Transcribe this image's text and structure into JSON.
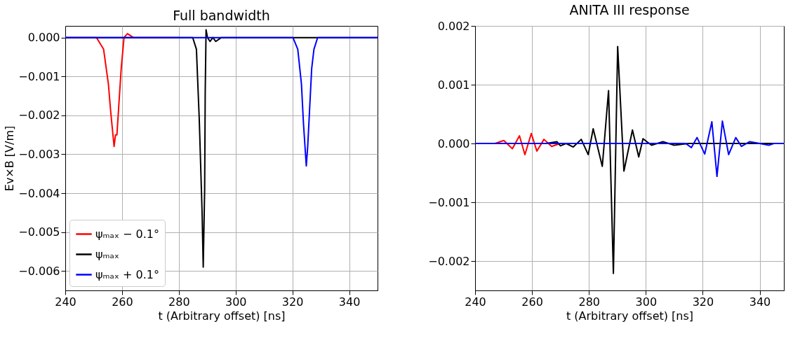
{
  "chart_data": [
    {
      "type": "line",
      "title": "Full bandwidth",
      "xlabel": "t (Arbitrary offset) [ns]",
      "ylabel": "Ev×B [V/m]",
      "xlim": [
        240,
        350
      ],
      "ylim": [
        -0.0065,
        0.0003
      ],
      "xticks": [
        240,
        260,
        280,
        300,
        320,
        340
      ],
      "yticks": [
        {
          "value": 0,
          "label": "0.000"
        },
        {
          "value": -0.001,
          "label": "−0.001"
        },
        {
          "value": -0.002,
          "label": "−0.002"
        },
        {
          "value": -0.003,
          "label": "−0.003"
        },
        {
          "value": -0.004,
          "label": "−0.004"
        },
        {
          "value": -0.005,
          "label": "−0.005"
        },
        {
          "value": -0.006,
          "label": "−0.006"
        }
      ],
      "grid": true,
      "legend": "bottom left",
      "line_style": "solid",
      "marker": "none",
      "series": [
        {
          "name": "ψₘₐₓ − 0.1°",
          "color": "#ff0000",
          "x": [
            240,
            250,
            251,
            253.5,
            255.2,
            256,
            257.2,
            257.7,
            258.2,
            258.9,
            259.7,
            260.7,
            261.9,
            264,
            270,
            280
          ],
          "values": [
            0,
            0,
            0,
            -0.0003,
            -0.0012,
            -0.0019,
            -0.0028,
            -0.0025,
            -0.0025,
            -0.0017,
            -0.0008,
            0,
            0.0001,
            0,
            0,
            0
          ]
        },
        {
          "name": "ψₘₐₓ",
          "color": "#000000",
          "x": [
            240,
            284,
            284.9,
            286.2,
            287.2,
            288.2,
            288.6,
            289.1,
            289.3,
            289.6,
            290.1,
            291,
            292,
            293,
            295,
            300,
            350
          ],
          "values": [
            0,
            0,
            0,
            -0.0003,
            -0.0021,
            -0.0045,
            -0.0059,
            -0.0039,
            -0.0014,
            0.0002,
            0,
            -0.0001,
            0,
            -0.0001,
            0,
            0,
            0
          ]
        },
        {
          "name": "ψₘₐₓ + 0.1°",
          "color": "#0000ff",
          "x": [
            240,
            319.5,
            320.2,
            321.9,
            323.2,
            323.9,
            324.9,
            325.4,
            326.1,
            326.8,
            327.6,
            328.9,
            332,
            350
          ],
          "values": [
            0,
            0,
            0,
            -0.0003,
            -0.0012,
            -0.0022,
            -0.0033,
            -0.0028,
            -0.0018,
            -0.0008,
            -0.0003,
            0,
            0,
            0
          ]
        }
      ]
    },
    {
      "type": "line",
      "title": "ANITA III response",
      "xlabel": "t (Arbitrary offset) [ns]",
      "xlim": [
        240,
        348.5
      ],
      "ylim": [
        -0.0025,
        0.002
      ],
      "xticks": [
        240,
        260,
        280,
        300,
        320,
        340
      ],
      "yticks": [
        {
          "value": 0.002,
          "label": "0.002"
        },
        {
          "value": 0.001,
          "label": "0.001"
        },
        {
          "value": 0,
          "label": "0.000"
        },
        {
          "value": -0.001,
          "label": "−0.001"
        },
        {
          "value": -0.002,
          "label": "−0.002"
        }
      ],
      "grid": true,
      "line_style": "solid",
      "marker": "none",
      "series": [
        {
          "color": "#ff0000",
          "x": [
            240,
            247,
            250.1,
            253.1,
            255.6,
            257.5,
            259.75,
            261.7,
            264.2,
            266.9,
            269.9,
            275
          ],
          "values": [
            0,
            0,
            5e-05,
            -9e-05,
            0.00013,
            -0.00019,
            0.00017,
            -0.00013,
            7e-05,
            -5e-05,
            0,
            0
          ]
        },
        {
          "color": "#000000",
          "x": [
            240,
            258,
            260.5,
            265,
            268.75,
            270,
            272,
            274.5,
            277.3,
            279.75,
            281.5,
            284.7,
            286.9,
            288.6,
            290.1,
            292.3,
            295.3,
            297.5,
            299,
            302,
            306,
            310,
            315,
            320,
            348.5
          ],
          "values": [
            0,
            0,
            0,
            0,
            3e-05,
            -4e-05,
            0,
            -6e-05,
            7e-05,
            -0.00019,
            0.00025,
            -0.00039,
            0.0009,
            -0.00221,
            0.00165,
            -0.00047,
            0.00023,
            -0.00023,
            8e-05,
            -3e-05,
            3e-05,
            -3e-05,
            0,
            0,
            0
          ]
        },
        {
          "color": "#0000ff",
          "x": [
            240,
            310,
            314,
            316,
            318,
            320.7,
            323.2,
            325,
            326.9,
            329.1,
            331.6,
            333.6,
            336.5,
            340,
            343.2,
            345,
            348.5
          ],
          "values": [
            0,
            0,
            0,
            -7e-05,
            0.0001,
            -0.00018,
            0.00037,
            -0.00056,
            0.00038,
            -0.00019,
            0.0001,
            -5e-05,
            3e-05,
            0,
            -3e-05,
            0,
            0
          ]
        }
      ]
    }
  ]
}
